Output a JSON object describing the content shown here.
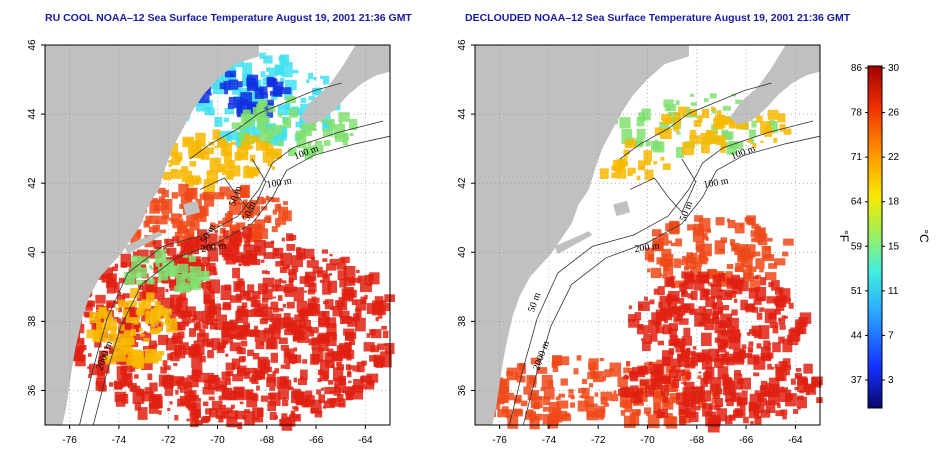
{
  "titles": {
    "left": "RU COOL NOAA–12 Sea Surface Temperature August 19, 2001 21:36 GMT",
    "right": "DECLOUDED NOAA–12 Sea Surface Temperature August 19, 2001 21:36 GMT"
  },
  "chart_data": [
    {
      "type": "heatmap",
      "name": "raw",
      "title": "RU COOL NOAA–12 Sea Surface Temperature August 19, 2001 21:36 GMT",
      "xlim": [
        -77,
        -63
      ],
      "ylim": [
        35,
        46
      ],
      "x_ticks": [
        -76,
        -74,
        -72,
        -70,
        -68,
        -66,
        -64
      ],
      "y_ticks": [
        36,
        38,
        40,
        42,
        44,
        46
      ],
      "grid": true,
      "contour_labels": [
        "100 m",
        "100 m",
        "50 m",
        "50 m",
        "50 m",
        "200 m",
        "2000 m"
      ]
    },
    {
      "type": "heatmap",
      "name": "declouded",
      "title": "DECLOUDED NOAA–12 Sea Surface Temperature August 19, 2001 21:36 GMT",
      "xlim": [
        -77,
        -63
      ],
      "ylim": [
        35,
        46
      ],
      "x_ticks": [
        -76,
        -74,
        -72,
        -70,
        -68,
        -66,
        -64
      ],
      "y_ticks": [
        36,
        38,
        40,
        42,
        44,
        46
      ],
      "grid": true,
      "contour_labels": [
        "100 m",
        "100 m",
        "50 m",
        "50 m",
        "200 m",
        "2000 m"
      ]
    }
  ],
  "colorbar": {
    "fahrenheit_label": "°F",
    "celsius_label": "°C",
    "celsius_range": [
      0,
      30
    ],
    "fahrenheit_ticks": [
      "86",
      "78",
      "71",
      "64",
      "59",
      "51",
      "44",
      "37"
    ],
    "celsius_ticks": [
      "30",
      "26",
      "22",
      "18",
      "15",
      "11",
      "7",
      "3"
    ],
    "colors": [
      "#08086b",
      "#1430ff",
      "#2aa8ff",
      "#40f0e0",
      "#a8f050",
      "#f8e800",
      "#ff9800",
      "#f03000",
      "#a00000"
    ]
  },
  "map_colors": {
    "land": "#c0c0c0",
    "cloud_mask": "#ffffff",
    "cold": "#1030e0",
    "cool": "#40e0f0",
    "mild": "#80e070",
    "warm": "#f8b800",
    "hot": "#f04818",
    "hotter": "#e02010"
  }
}
